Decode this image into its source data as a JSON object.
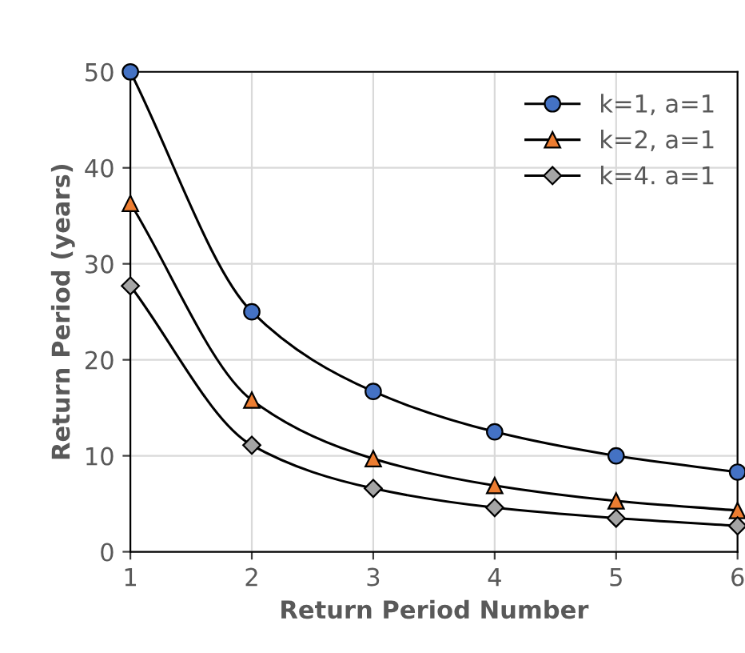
{
  "chart_data": {
    "type": "line",
    "xlabel": "Return Period Number",
    "ylabel": "Return Period (years)",
    "x": [
      1,
      2,
      3,
      4,
      5,
      6
    ],
    "series": [
      {
        "name": "k=1, a=1",
        "color": "#4472c4",
        "marker": "circle",
        "values": [
          50,
          25,
          16.7,
          12.5,
          10,
          8.3
        ]
      },
      {
        "name": "k=2, a=1",
        "color": "#ed7d31",
        "marker": "triangle",
        "values": [
          36.3,
          15.8,
          9.7,
          6.9,
          5.3,
          4.3
        ]
      },
      {
        "name": "k=4. a=1",
        "color": "#a5a5a5",
        "marker": "diamond",
        "values": [
          27.7,
          11.1,
          6.6,
          4.6,
          3.5,
          2.7
        ]
      }
    ],
    "xlim": [
      1,
      6
    ],
    "ylim": [
      0,
      50
    ],
    "xticks": [
      1,
      2,
      3,
      4,
      5,
      6
    ],
    "yticks": [
      0,
      10,
      20,
      30,
      40,
      50
    ],
    "grid": true,
    "legend": "top right",
    "line_style": "solid"
  }
}
